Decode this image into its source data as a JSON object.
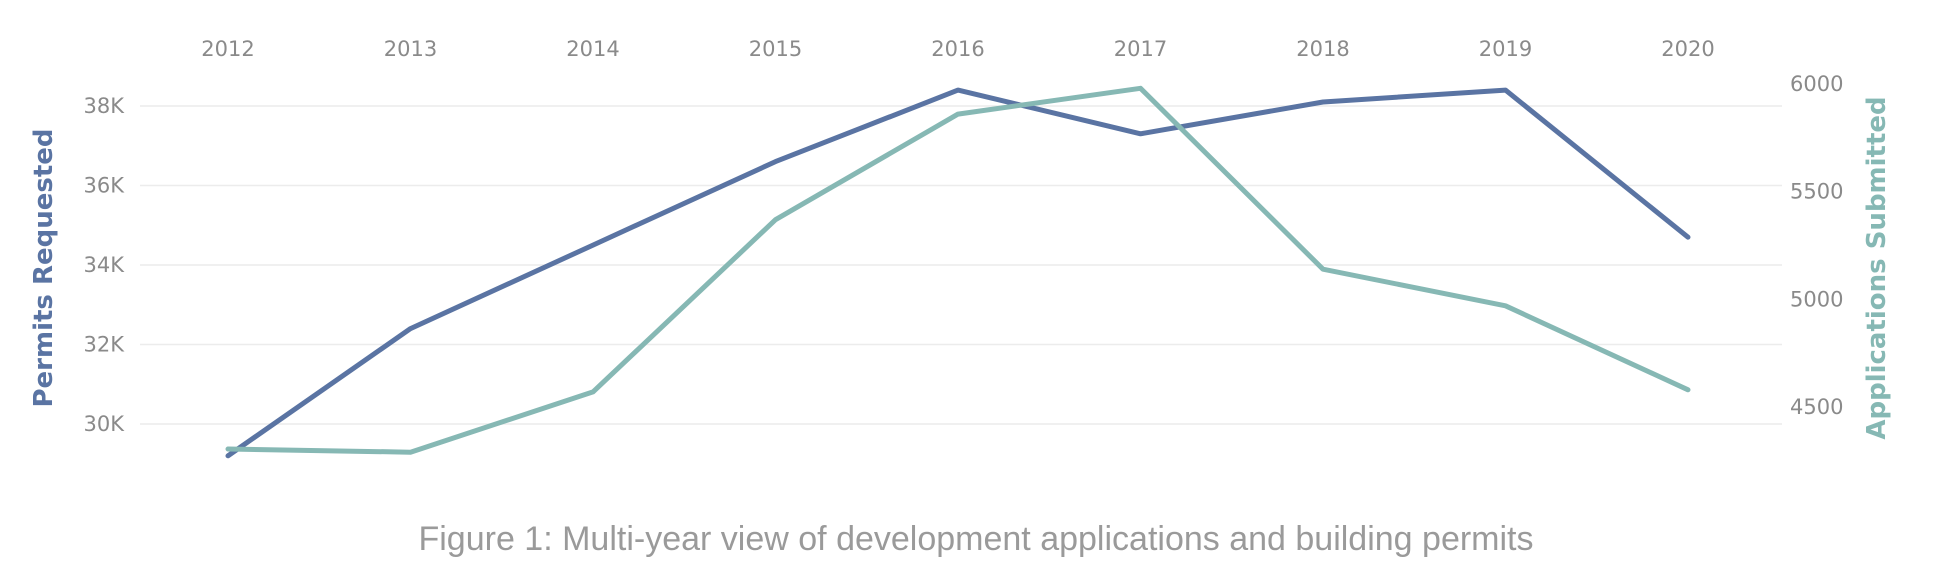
{
  "chart_data": {
    "type": "line",
    "x": [
      "2012",
      "2013",
      "2014",
      "2015",
      "2016",
      "2017",
      "2018",
      "2019",
      "2020"
    ],
    "series": [
      {
        "name": "Permits Requested",
        "axis": "left",
        "color": "#5a74a3",
        "values": [
          29200,
          32400,
          34500,
          36600,
          38400,
          37300,
          38100,
          38400,
          34700
        ]
      },
      {
        "name": "Applications Submitted",
        "axis": "right",
        "color": "#86b8b4",
        "values": [
          4305,
          4290,
          4570,
          5370,
          5860,
          5980,
          5140,
          4970,
          4580
        ]
      }
    ],
    "y_left": {
      "label": "Permits Requested",
      "ticks": [
        30000,
        32000,
        34000,
        36000,
        38000
      ],
      "tick_labels": [
        "30K",
        "32K",
        "34K",
        "36K",
        "38K"
      ],
      "range": [
        29000,
        38400
      ]
    },
    "y_right": {
      "label": "Applications Submitted",
      "ticks": [
        4500,
        5000,
        5500,
        6000
      ],
      "tick_labels": [
        "4500",
        "5000",
        "5500",
        "6000"
      ],
      "range": [
        4250,
        6000
      ]
    },
    "x_axis_position": "top",
    "grid": true,
    "legend": "none"
  },
  "caption": "Figure 1: Multi-year view of development applications and building permits"
}
